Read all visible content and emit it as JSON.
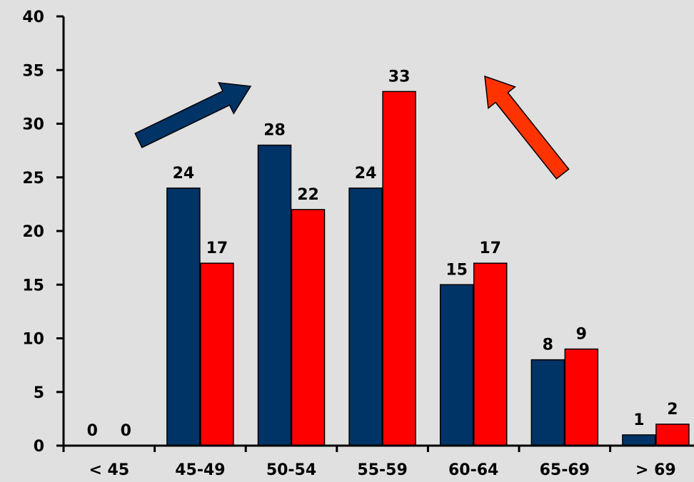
{
  "chart_data": {
    "type": "bar",
    "title": "",
    "xlabel": "",
    "ylabel": "",
    "ylim": [
      0,
      40
    ],
    "yticks": [
      0,
      5,
      10,
      15,
      20,
      25,
      30,
      35,
      40
    ],
    "categories": [
      "< 45",
      "45-49",
      "50-54",
      "55-59",
      "60-64",
      "65-69",
      "> 69"
    ],
    "series": [
      {
        "color": "#003366",
        "values": [
          0,
          24,
          28,
          24,
          15,
          8,
          1
        ]
      },
      {
        "color": "#ff0000",
        "values": [
          0,
          17,
          22,
          33,
          17,
          9,
          2
        ]
      }
    ],
    "grid": false,
    "legend": "none",
    "annotations": [
      {
        "type": "arrow",
        "color": "#003366",
        "direction": "up-right"
      },
      {
        "type": "arrow",
        "color": "#ff3300",
        "direction": "up-left"
      }
    ]
  }
}
